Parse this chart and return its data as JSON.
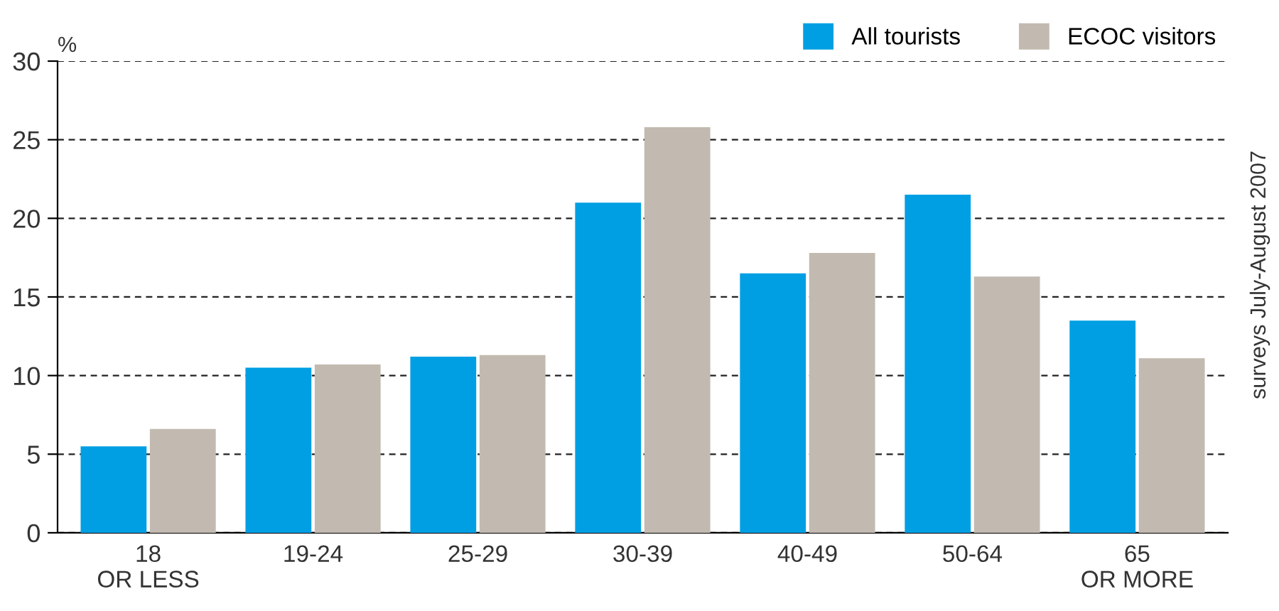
{
  "chart_data": {
    "type": "bar",
    "ylabel": "%",
    "categories": [
      "18\nOR LESS",
      "19-24",
      "25-29",
      "30-39",
      "40-49",
      "50-64",
      "65\nOR MORE"
    ],
    "series": [
      {
        "name": "All tourists",
        "color": "#009fe3",
        "values": [
          5.5,
          10.5,
          11.2,
          21.0,
          16.5,
          21.5,
          13.5
        ]
      },
      {
        "name": "ECOC visitors",
        "color": "#c2bab0",
        "values": [
          6.6,
          10.7,
          11.3,
          25.8,
          17.8,
          16.3,
          11.1
        ]
      }
    ],
    "ylim": [
      0,
      30
    ],
    "yticks": [
      0,
      5,
      10,
      15,
      20,
      25,
      30
    ],
    "grid": "y",
    "legend": "top right",
    "annotations": [
      "surveys July-August 2007"
    ]
  }
}
